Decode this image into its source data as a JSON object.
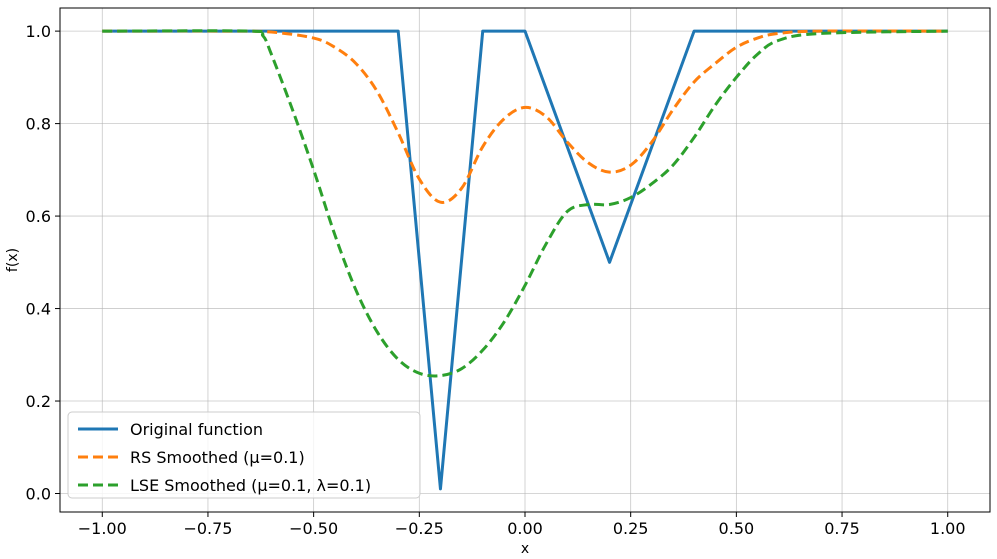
{
  "chart_data": {
    "type": "line",
    "title": "",
    "xlabel": "x",
    "ylabel": "f(x)",
    "xlim": [
      -1.1,
      1.1
    ],
    "ylim": [
      -0.04,
      1.05
    ],
    "grid": true,
    "legend_position": "bottom-left",
    "x_ticks": [
      -1.0,
      -0.75,
      -0.5,
      -0.25,
      0.0,
      0.25,
      0.5,
      0.75,
      1.0
    ],
    "x_tick_labels": [
      "−1.00",
      "−0.75",
      "−0.50",
      "−0.25",
      "0.00",
      "0.25",
      "0.50",
      "0.75",
      "1.00"
    ],
    "y_ticks": [
      0.0,
      0.2,
      0.4,
      0.6,
      0.8,
      1.0
    ],
    "y_tick_labels": [
      "0.0",
      "0.2",
      "0.4",
      "0.6",
      "0.8",
      "1.0"
    ],
    "series": [
      {
        "name": "Original function",
        "color": "#1f77b4",
        "style": "solid",
        "x": [
          -1.0,
          -0.3,
          -0.2,
          -0.1,
          0.0,
          0.2,
          0.4,
          1.0
        ],
        "y": [
          1.0,
          1.0,
          0.01,
          1.0,
          1.0,
          0.5,
          1.0,
          1.0
        ]
      },
      {
        "name": "RS Smoothed (μ=0.1)",
        "color": "#ff7f0e",
        "style": "dashed",
        "x": [
          -1.0,
          -0.7,
          -0.6,
          -0.5,
          -0.45,
          -0.4,
          -0.35,
          -0.3,
          -0.25,
          -0.2,
          -0.15,
          -0.1,
          -0.05,
          0.0,
          0.05,
          0.1,
          0.15,
          0.2,
          0.25,
          0.3,
          0.35,
          0.4,
          0.45,
          0.5,
          0.55,
          0.6,
          0.7,
          1.0
        ],
        "y": [
          1.0,
          1.0,
          0.998,
          0.985,
          0.965,
          0.93,
          0.87,
          0.78,
          0.68,
          0.63,
          0.66,
          0.75,
          0.81,
          0.835,
          0.815,
          0.76,
          0.715,
          0.695,
          0.71,
          0.76,
          0.83,
          0.89,
          0.93,
          0.965,
          0.985,
          0.995,
          1.0,
          1.0
        ]
      },
      {
        "name": "LSE Smoothed (μ=0.1, λ=0.1)",
        "color": "#2ca02c",
        "style": "dashed",
        "x": [
          -1.0,
          -0.65,
          -0.62,
          -0.6,
          -0.55,
          -0.5,
          -0.45,
          -0.4,
          -0.35,
          -0.3,
          -0.25,
          -0.2,
          -0.15,
          -0.1,
          -0.05,
          0.0,
          0.05,
          0.1,
          0.15,
          0.2,
          0.25,
          0.3,
          0.35,
          0.4,
          0.45,
          0.5,
          0.55,
          0.6,
          0.7,
          1.0
        ],
        "y": [
          1.0,
          1.0,
          0.99,
          0.95,
          0.83,
          0.7,
          0.56,
          0.44,
          0.35,
          0.29,
          0.26,
          0.255,
          0.27,
          0.31,
          0.37,
          0.45,
          0.54,
          0.61,
          0.625,
          0.625,
          0.64,
          0.67,
          0.71,
          0.77,
          0.84,
          0.9,
          0.95,
          0.98,
          0.995,
          1.0
        ]
      }
    ]
  }
}
